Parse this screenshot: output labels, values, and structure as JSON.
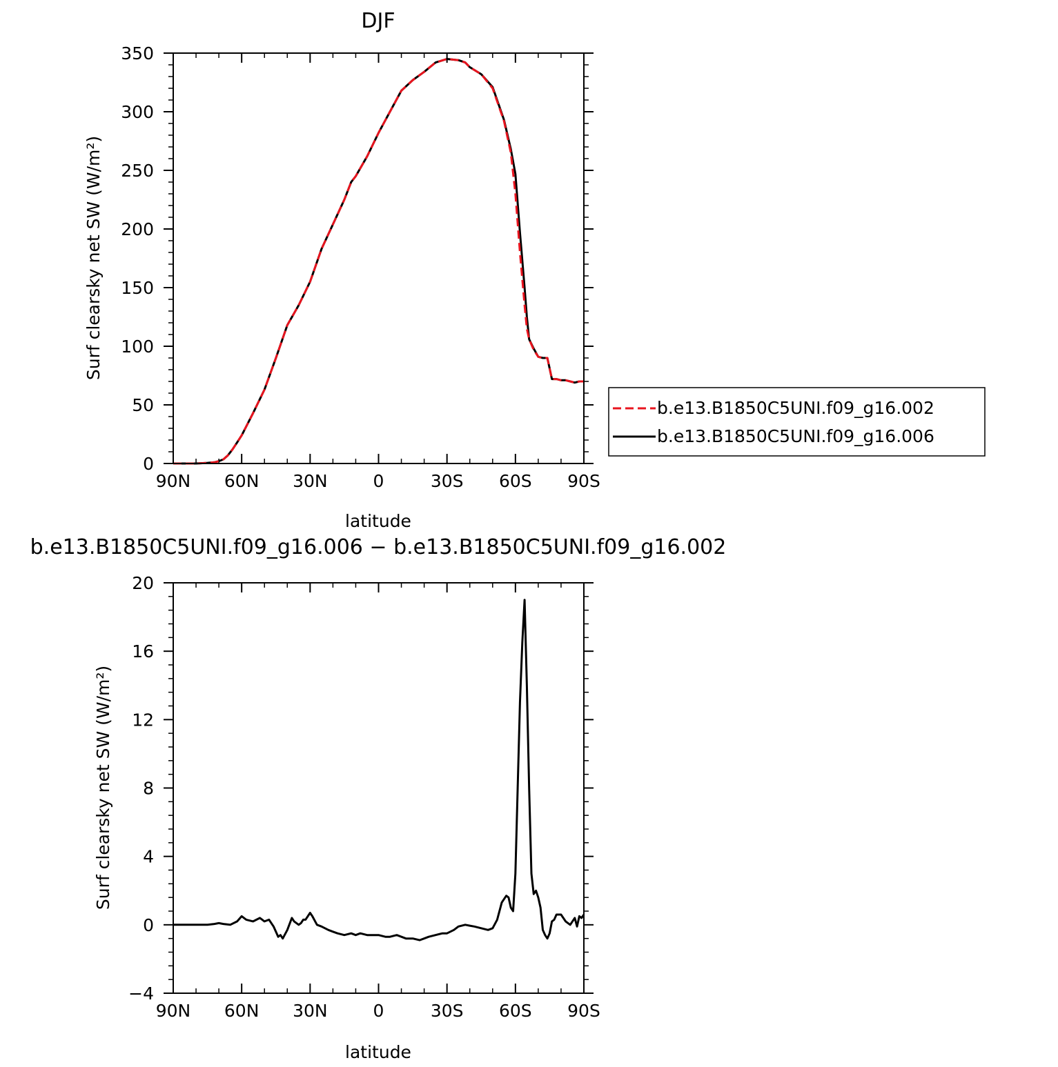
{
  "chart_data": [
    {
      "type": "line",
      "title": "DJF",
      "xlabel": "latitude",
      "ylabel": "Surf clearsky net SW (W/m²)",
      "xlim": [
        90,
        -90
      ],
      "ylim": [
        0,
        350
      ],
      "x_ticks": [
        90,
        60,
        30,
        0,
        -30,
        -60,
        -90
      ],
      "x_tick_labels": [
        "90N",
        "60N",
        "30N",
        "0",
        "30S",
        "60S",
        "90S"
      ],
      "y_ticks": [
        0,
        50,
        100,
        150,
        200,
        250,
        300,
        350
      ],
      "y_tick_labels": [
        "0",
        "50",
        "100",
        "150",
        "200",
        "250",
        "300",
        "350"
      ],
      "legend_placement": "right",
      "series": [
        {
          "name": "b.e13.B1850C5UNI.f09_g16.002",
          "color": "#e8141e",
          "style": "dashed",
          "x": [
            90,
            85,
            80,
            75,
            72,
            70,
            68,
            66,
            64,
            62,
            60,
            55,
            50,
            45,
            40,
            35,
            30,
            25,
            20,
            15,
            12,
            10,
            5,
            0,
            -5,
            -10,
            -15,
            -20,
            -25,
            -30,
            -35,
            -38,
            -40,
            -45,
            -50,
            -55,
            -58,
            -60,
            -62,
            -64,
            -65,
            -66,
            -68,
            -70,
            -72,
            -74,
            -76,
            -77,
            -78,
            -80,
            -82,
            -84,
            -86,
            -88,
            -90
          ],
          "y": [
            0,
            0,
            0,
            0.5,
            1,
            2,
            3.5,
            7,
            12,
            18,
            24,
            43,
            63,
            90,
            118,
            135,
            155,
            183,
            204,
            225,
            240,
            245,
            262,
            282,
            300,
            318,
            327,
            334,
            342,
            345,
            344,
            342,
            338,
            332,
            320,
            292,
            265,
            230,
            180,
            135,
            115,
            106,
            97,
            91,
            90,
            90,
            72,
            72,
            72,
            71,
            71,
            70,
            69,
            70,
            70
          ]
        },
        {
          "name": "b.e13.B1850C5UNI.f09_g16.006",
          "color": "#000000",
          "style": "solid",
          "x": [
            90,
            85,
            80,
            75,
            72,
            70,
            68,
            66,
            64,
            62,
            60,
            55,
            50,
            45,
            40,
            35,
            30,
            25,
            20,
            15,
            12,
            10,
            5,
            0,
            -5,
            -10,
            -15,
            -20,
            -25,
            -30,
            -35,
            -38,
            -40,
            -45,
            -50,
            -55,
            -58,
            -60,
            -62,
            -64,
            -65,
            -66,
            -68,
            -70,
            -72,
            -74,
            -76,
            -77,
            -78,
            -80,
            -82,
            -84,
            -86,
            -88,
            -90
          ],
          "y": [
            0,
            0,
            0,
            0.5,
            1,
            2,
            3.5,
            7,
            12,
            18,
            24,
            43,
            63,
            90,
            118,
            135,
            155,
            183,
            204,
            225,
            240,
            245,
            262,
            282,
            300,
            318,
            327,
            334,
            342,
            345,
            344,
            342,
            338,
            332,
            321,
            293,
            268,
            247,
            197,
            150,
            125,
            106,
            98,
            91,
            90,
            90,
            72,
            72,
            72,
            71,
            71,
            70,
            69,
            70,
            70
          ]
        }
      ]
    },
    {
      "type": "line",
      "title": "b.e13.B1850C5UNI.f09_g16.006 − b.e13.B1850C5UNI.f09_g16.002",
      "xlabel": "latitude",
      "ylabel": "Surf clearsky net SW (W/m²)",
      "xlim": [
        90,
        -90
      ],
      "ylim": [
        -4,
        20
      ],
      "x_ticks": [
        90,
        60,
        30,
        0,
        -30,
        -60,
        -90
      ],
      "x_tick_labels": [
        "90N",
        "60N",
        "30N",
        "0",
        "30S",
        "60S",
        "90S"
      ],
      "y_ticks": [
        -4,
        0,
        4,
        8,
        12,
        16,
        20
      ],
      "y_tick_labels": [
        "−4",
        "0",
        "4",
        "8",
        "12",
        "16",
        "20"
      ],
      "series": [
        {
          "color": "#000000",
          "style": "solid",
          "x": [
            90,
            80,
            75,
            72,
            70,
            68,
            65,
            62,
            60,
            58,
            55,
            52,
            50,
            48,
            46,
            44,
            43,
            42,
            40,
            38,
            37,
            35,
            34,
            33,
            32,
            30,
            29,
            27,
            25,
            22,
            20,
            18,
            15,
            12,
            10,
            8,
            5,
            2,
            0,
            -3,
            -5,
            -8,
            -10,
            -12,
            -15,
            -18,
            -20,
            -22,
            -25,
            -28,
            -30,
            -33,
            -35,
            -38,
            -40,
            -42,
            -45,
            -48,
            -50,
            -52,
            -54,
            -56,
            -57,
            -58,
            -59,
            -60,
            -61,
            -62,
            -63,
            -64,
            -65,
            -66,
            -67,
            -68,
            -69,
            -70,
            -71,
            -72,
            -73,
            -74,
            -75,
            -76,
            -77,
            -78,
            -80,
            -82,
            -84,
            -86,
            -87,
            -88,
            -89,
            -90
          ],
          "y": [
            0,
            0,
            0,
            0.05,
            0.1,
            0.05,
            0.0,
            0.2,
            0.5,
            0.3,
            0.2,
            0.4,
            0.2,
            0.3,
            -0.1,
            -0.7,
            -0.6,
            -0.8,
            -0.3,
            0.4,
            0.2,
            0.0,
            0.1,
            0.3,
            0.3,
            0.7,
            0.5,
            0.0,
            -0.1,
            -0.3,
            -0.4,
            -0.5,
            -0.6,
            -0.5,
            -0.6,
            -0.5,
            -0.6,
            -0.6,
            -0.6,
            -0.7,
            -0.7,
            -0.6,
            -0.7,
            -0.8,
            -0.8,
            -0.9,
            -0.8,
            -0.7,
            -0.6,
            -0.5,
            -0.5,
            -0.3,
            -0.1,
            0.0,
            -0.05,
            -0.1,
            -0.2,
            -0.3,
            -0.2,
            0.3,
            1.3,
            1.7,
            1.6,
            1.0,
            0.8,
            3.0,
            8.0,
            13.0,
            16.5,
            19.0,
            14.0,
            8.0,
            3.0,
            1.8,
            2.0,
            1.6,
            1.0,
            -0.3,
            -0.6,
            -0.8,
            -0.5,
            0.2,
            0.3,
            0.6,
            0.6,
            0.2,
            0.0,
            0.4,
            -0.1,
            0.5,
            0.4,
            0.6
          ]
        }
      ]
    }
  ]
}
